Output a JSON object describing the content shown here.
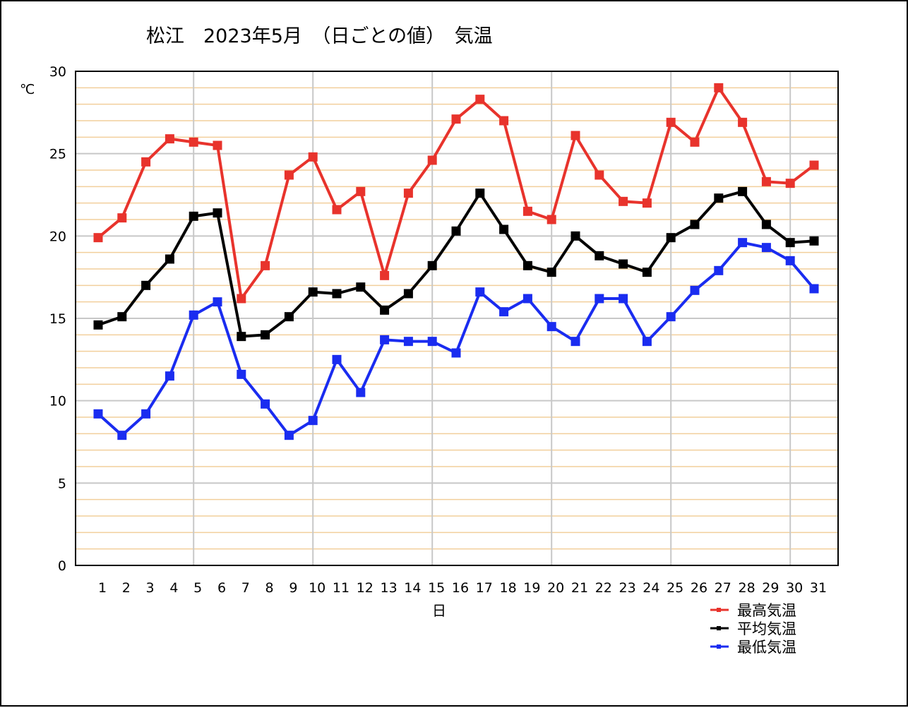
{
  "chart_data": {
    "type": "line",
    "title": "松江　2023年5月　（日ごとの値）　気温",
    "xlabel": "日",
    "ylabel": "℃",
    "ylim": [
      0,
      30
    ],
    "yticks": [
      0,
      5,
      10,
      15,
      20,
      25,
      30
    ],
    "minor_grid_step": 1,
    "x": [
      1,
      2,
      3,
      4,
      5,
      6,
      7,
      8,
      9,
      10,
      11,
      12,
      13,
      14,
      15,
      16,
      17,
      18,
      19,
      20,
      21,
      22,
      23,
      24,
      25,
      26,
      27,
      28,
      29,
      30,
      31
    ],
    "legend_position": "bottom-right",
    "series": [
      {
        "name": "最高気温",
        "color": "#e8332c",
        "values": [
          19.9,
          21.1,
          24.5,
          25.9,
          25.7,
          25.5,
          16.2,
          18.2,
          23.7,
          24.8,
          21.6,
          22.7,
          17.6,
          22.6,
          24.6,
          27.1,
          28.3,
          27.0,
          21.5,
          21.0,
          26.1,
          23.7,
          22.1,
          22.0,
          26.9,
          25.7,
          29.0,
          26.9,
          23.3,
          23.2,
          24.3
        ]
      },
      {
        "name": "平均気温",
        "color": "#000000",
        "values": [
          14.6,
          15.1,
          17.0,
          18.6,
          21.2,
          21.4,
          13.9,
          14.0,
          15.1,
          16.6,
          16.5,
          16.9,
          15.5,
          16.5,
          18.2,
          20.3,
          22.6,
          20.4,
          18.2,
          17.8,
          20.0,
          18.8,
          18.3,
          17.8,
          19.9,
          20.7,
          22.3,
          22.7,
          20.7,
          19.6,
          19.7
        ]
      },
      {
        "name": "最低気温",
        "color": "#1a2cf0",
        "values": [
          9.2,
          7.9,
          9.2,
          11.5,
          15.2,
          16.0,
          11.6,
          9.8,
          7.9,
          8.8,
          12.5,
          10.5,
          13.7,
          13.6,
          13.6,
          12.9,
          16.6,
          15.4,
          16.2,
          14.5,
          13.6,
          16.2,
          16.2,
          13.6,
          15.1,
          16.7,
          17.9,
          19.6,
          19.3,
          18.5,
          16.8
        ]
      }
    ]
  }
}
